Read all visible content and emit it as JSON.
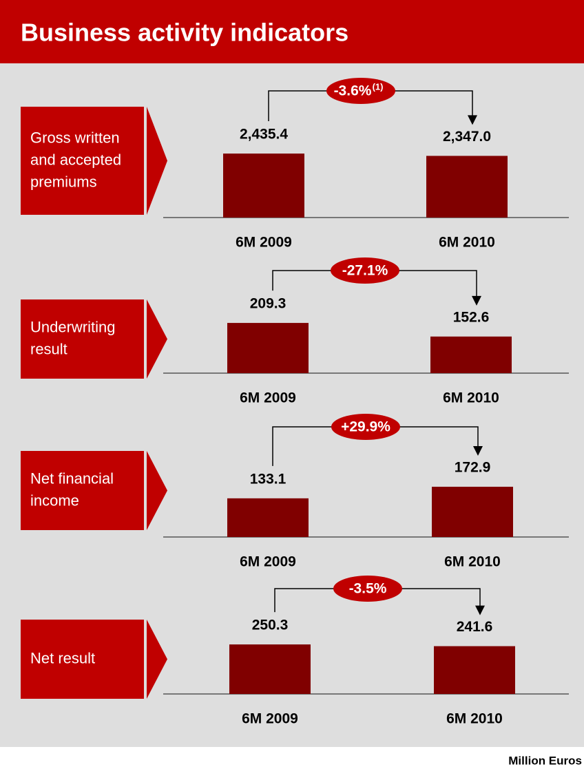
{
  "title": "Business activity indicators",
  "unit_note": "Million Euros",
  "chart_data": [
    {
      "type": "bar",
      "label": [
        "Gross written",
        "and accepted",
        "premiums"
      ],
      "categories": [
        "6M 2009",
        "6M 2010"
      ],
      "values": [
        2435.4,
        2347.0
      ],
      "value_labels": [
        "2,435.4",
        "2,347.0"
      ],
      "change": "-3.6%",
      "change_note": "(1)",
      "color": "#800000",
      "ylim": [
        0,
        2620
      ]
    },
    {
      "type": "bar",
      "label": [
        "Underwriting",
        "result"
      ],
      "categories": [
        "6M 2009",
        "6M 2010"
      ],
      "values": [
        209.3,
        152.6
      ],
      "value_labels": [
        "209.3",
        "152.6"
      ],
      "change": "-27.1%",
      "color": "#800000",
      "ylim": [
        0,
        287
      ]
    },
    {
      "type": "bar",
      "label": [
        "Net financial",
        "income"
      ],
      "categories": [
        "6M 2009",
        "6M 2010"
      ],
      "values": [
        133.1,
        172.9
      ],
      "value_labels": [
        "133.1",
        "172.9"
      ],
      "change": "+29.9%",
      "color": "#800000",
      "ylim": [
        0,
        237
      ]
    },
    {
      "type": "bar",
      "label": [
        "Net result"
      ],
      "categories": [
        "6M 2009",
        "6M 2010"
      ],
      "values": [
        250.3,
        241.6
      ],
      "value_labels": [
        "250.3",
        "241.6"
      ],
      "change": "-3.5%",
      "color": "#800000",
      "ylim": [
        0,
        348
      ]
    }
  ]
}
